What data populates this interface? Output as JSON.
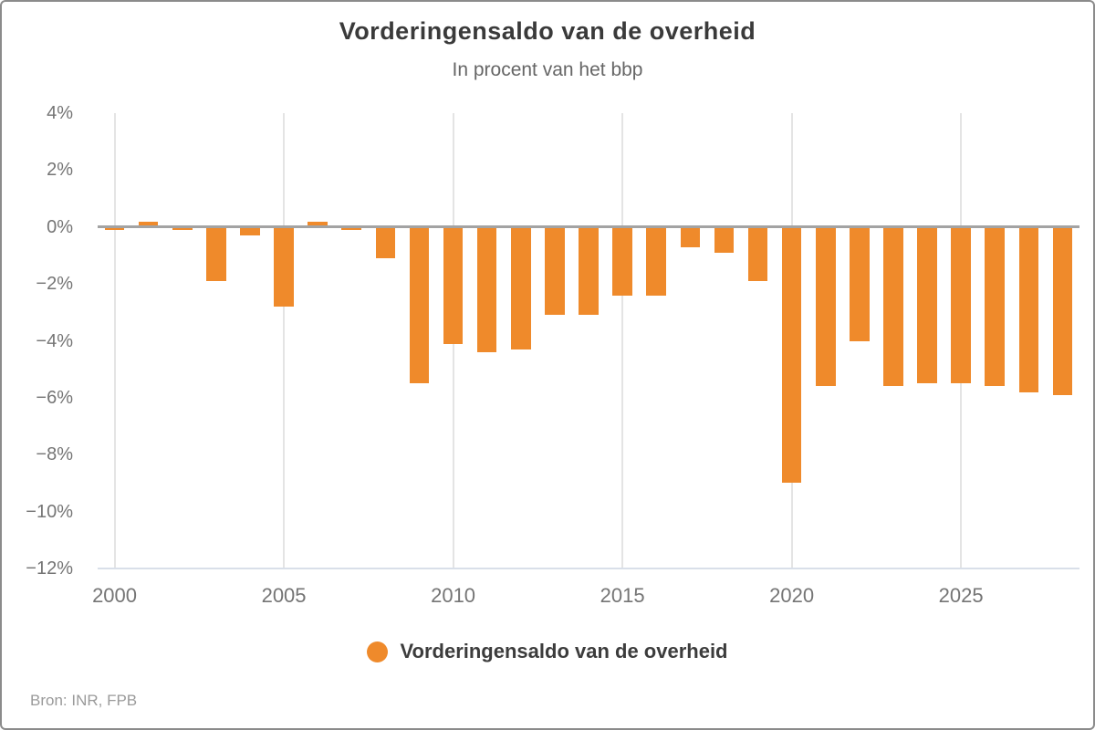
{
  "title": "Vorderingensaldo van de overheid",
  "subtitle": "In procent van het bbp",
  "source": "Bron: INR, FPB",
  "legend": {
    "label": "Vorderingensaldo van de overheid",
    "marker_color": "#EF8A2B"
  },
  "colors": {
    "bar": "#EF8A2B",
    "zero_line": "#a3a3a3",
    "gridline": "#e4e4e4",
    "baseline": "#d9dfe9"
  },
  "chart_data": {
    "type": "bar",
    "title": "Vorderingensaldo van de overheid",
    "subtitle": "In procent van het bbp",
    "xlabel": "",
    "ylabel": "In procent van het bbp",
    "ylim": [
      -12,
      4
    ],
    "grid": "vertical-only",
    "legend_position": "bottom",
    "categories": [
      2000,
      2001,
      2002,
      2003,
      2004,
      2005,
      2006,
      2007,
      2008,
      2009,
      2010,
      2011,
      2012,
      2013,
      2014,
      2015,
      2016,
      2017,
      2018,
      2019,
      2020,
      2021,
      2022,
      2023,
      2024,
      2025,
      2026,
      2027,
      2028
    ],
    "values": [
      -0.1,
      0.2,
      -0.1,
      -1.9,
      -0.3,
      -2.8,
      0.2,
      -0.1,
      -1.1,
      -5.5,
      -4.1,
      -4.4,
      -4.3,
      -3.1,
      -3.1,
      -2.4,
      -2.4,
      -0.7,
      -0.9,
      -1.9,
      -9.0,
      -5.6,
      -4.0,
      -5.6,
      -5.5,
      -5.5,
      -5.6,
      -5.8,
      -5.9
    ],
    "series_name": "Vorderingensaldo van de overheid",
    "y_tick_values": [
      4,
      2,
      0,
      -2,
      -4,
      -6,
      -8,
      -10,
      -12
    ],
    "y_tick_labels": [
      "4%",
      "2%",
      "0%",
      "−2%",
      "−4%",
      "−6%",
      "−8%",
      "−10%",
      "−12%"
    ],
    "x_tick_values": [
      2000,
      2005,
      2010,
      2015,
      2020,
      2025
    ],
    "x_tick_labels": [
      "2000",
      "2005",
      "2010",
      "2015",
      "2020",
      "2025"
    ]
  }
}
